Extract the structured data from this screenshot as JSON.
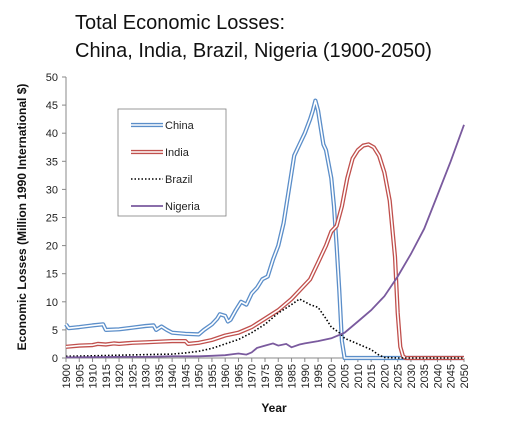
{
  "chart_data": {
    "type": "line",
    "title": "Total Economic Losses:",
    "subtitle": "China, India, Brazil, Nigeria (1900-2050)",
    "xlabel": "Year",
    "ylabel": "Economic Losses (Million 1990 International $)",
    "xlim": [
      1900,
      2050
    ],
    "ylim": [
      0,
      50
    ],
    "x_ticks": [
      1900,
      1905,
      1910,
      1915,
      1920,
      1925,
      1930,
      1935,
      1940,
      1945,
      1950,
      1955,
      1960,
      1965,
      1970,
      1975,
      1980,
      1985,
      1990,
      1995,
      2000,
      2005,
      2010,
      2015,
      2020,
      2025,
      2030,
      2035,
      2040,
      2045,
      2050
    ],
    "y_ticks": [
      0,
      5,
      10,
      15,
      20,
      25,
      30,
      35,
      40,
      45,
      50
    ],
    "grid": false,
    "legend_position": "upper-left",
    "series": [
      {
        "name": "China",
        "color": "#5b8ec9",
        "style": "double",
        "x": [
          1900,
          1901,
          1905,
          1910,
          1914,
          1915,
          1920,
          1925,
          1930,
          1933,
          1934,
          1936,
          1938,
          1940,
          1945,
          1950,
          1952,
          1955,
          1957,
          1958,
          1960,
          1961,
          1962,
          1964,
          1966,
          1968,
          1970,
          1972,
          1974,
          1976,
          1978,
          1980,
          1982,
          1984,
          1986,
          1988,
          1990,
          1992,
          1993,
          1994,
          1995,
          1996,
          1997,
          1998,
          2000,
          2001,
          2002,
          2003,
          2004,
          2005,
          2010,
          2020,
          2030,
          2040,
          2050
        ],
        "y": [
          6.0,
          5.3,
          5.5,
          5.8,
          6.0,
          5.0,
          5.1,
          5.4,
          5.7,
          5.8,
          5.0,
          5.6,
          5.0,
          4.5,
          4.3,
          4.2,
          5.0,
          6.0,
          7.0,
          7.8,
          7.5,
          6.5,
          6.8,
          8.5,
          10.0,
          9.5,
          11.5,
          12.5,
          14.0,
          14.5,
          17.5,
          20.0,
          24.0,
          30.0,
          36.0,
          38.0,
          40.0,
          42.5,
          44.0,
          45.8,
          44.0,
          41.0,
          38.0,
          37.0,
          32.0,
          27.0,
          20.0,
          12.0,
          3.0,
          0.0,
          0.0,
          0.0,
          0.0,
          0.0,
          0.0
        ]
      },
      {
        "name": "India",
        "color": "#c0504d",
        "style": "double",
        "x": [
          1900,
          1905,
          1910,
          1912,
          1915,
          1918,
          1920,
          1925,
          1930,
          1935,
          1940,
          1945,
          1946,
          1950,
          1955,
          1960,
          1965,
          1970,
          1975,
          1980,
          1985,
          1988,
          1990,
          1992,
          1995,
          1998,
          2000,
          2002,
          2004,
          2006,
          2008,
          2010,
          2012,
          2014,
          2016,
          2018,
          2020,
          2022,
          2024,
          2025,
          2026,
          2027,
          2028,
          2030,
          2035,
          2040,
          2045,
          2050
        ],
        "y": [
          2.0,
          2.2,
          2.3,
          2.5,
          2.4,
          2.6,
          2.5,
          2.7,
          2.8,
          2.9,
          3.0,
          3.0,
          2.5,
          2.7,
          3.2,
          4.0,
          4.5,
          5.5,
          7.0,
          8.5,
          10.5,
          12.0,
          13.0,
          14.0,
          17.0,
          20.0,
          22.5,
          23.5,
          27.0,
          32.0,
          35.5,
          37.0,
          37.8,
          38.0,
          37.5,
          36.0,
          33.0,
          28.0,
          18.0,
          8.0,
          2.0,
          0.3,
          0.0,
          0.0,
          0.0,
          0.0,
          0.0,
          0.0
        ]
      },
      {
        "name": "Brazil",
        "color": "#000000",
        "style": "dotted",
        "x": [
          1900,
          1910,
          1920,
          1930,
          1940,
          1945,
          1950,
          1955,
          1960,
          1965,
          1970,
          1975,
          1980,
          1985,
          1988,
          1990,
          1992,
          1995,
          1998,
          2000,
          2003,
          2005,
          2010,
          2015,
          2018,
          2020,
          2025,
          2030,
          2040,
          2050
        ],
        "y": [
          0.3,
          0.4,
          0.5,
          0.6,
          0.7,
          0.9,
          1.2,
          1.7,
          2.5,
          3.3,
          4.5,
          6.0,
          8.0,
          9.5,
          10.5,
          10.0,
          9.5,
          9.0,
          7.0,
          5.5,
          4.5,
          3.5,
          2.5,
          1.5,
          0.5,
          0.1,
          0.0,
          0.0,
          0.0,
          0.0
        ]
      },
      {
        "name": "Nigeria",
        "color": "#7a5a9e",
        "style": "solid",
        "x": [
          1900,
          1910,
          1920,
          1930,
          1940,
          1950,
          1955,
          1960,
          1963,
          1965,
          1968,
          1970,
          1972,
          1975,
          1978,
          1980,
          1983,
          1985,
          1988,
          1990,
          1995,
          2000,
          2005,
          2010,
          2015,
          2020,
          2025,
          2030,
          2035,
          2040,
          2045,
          2050
        ],
        "y": [
          0.1,
          0.15,
          0.2,
          0.2,
          0.3,
          0.3,
          0.4,
          0.5,
          0.7,
          0.8,
          0.6,
          1.0,
          1.8,
          2.2,
          2.6,
          2.2,
          2.5,
          1.9,
          2.4,
          2.6,
          3.0,
          3.5,
          4.5,
          6.5,
          8.5,
          11.0,
          14.5,
          18.5,
          23.0,
          29.0,
          35.0,
          41.5
        ]
      }
    ]
  }
}
